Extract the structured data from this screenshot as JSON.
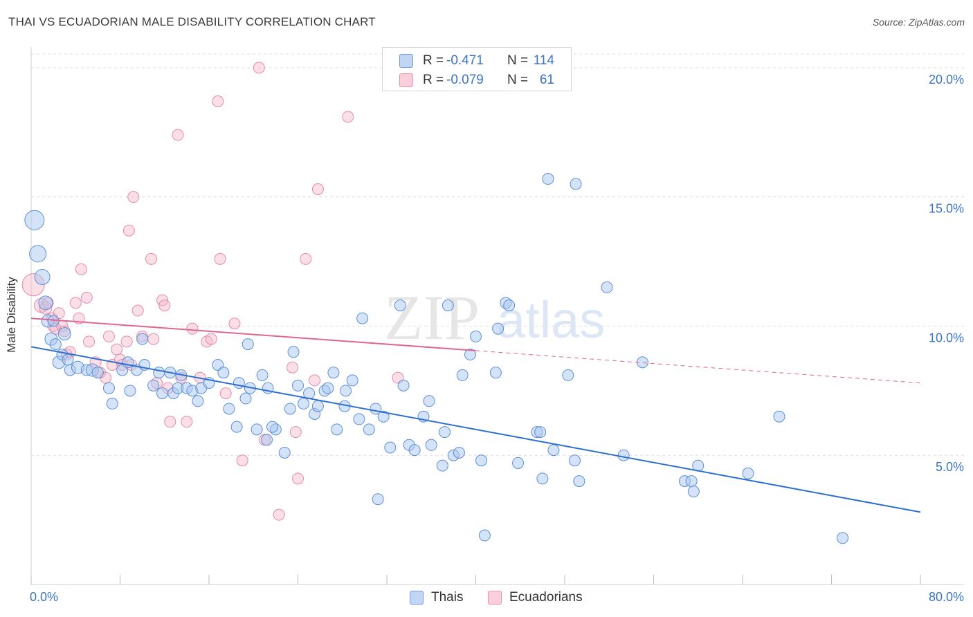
{
  "title": "THAI VS ECUADORIAN MALE DISABILITY CORRELATION CHART",
  "source": "Source: ZipAtlas.com",
  "watermark": {
    "zip": "ZIP",
    "atlas": "atlas"
  },
  "legend": {
    "rows": [
      {
        "r_label": "R =",
        "r_value": "-0.471",
        "n_label": "N =",
        "n_value": "114",
        "color": "#a9c7f0"
      },
      {
        "r_label": "R =",
        "r_value": "-0.079",
        "n_label": "N =",
        "n_value": "61",
        "color": "#f5b8ca"
      }
    ]
  },
  "bottom_legend": [
    {
      "label": "Thais",
      "color": "#a9c7f0"
    },
    {
      "label": "Ecuadorians",
      "color": "#f5b8ca"
    }
  ],
  "colors": {
    "thai_fill": "#a9c7f0",
    "thai_stroke": "#5b8fd6",
    "thai_line": "#2d6fd1",
    "ecu_fill": "#f5b8ca",
    "ecu_stroke": "#e58aa8",
    "ecu_line": "#e0668f",
    "grid": "#dcdcdc",
    "tick_label": "#3b73c9"
  },
  "chart_data": {
    "type": "scatter",
    "title": "THAI VS ECUADORIAN MALE DISABILITY CORRELATION CHART",
    "xlabel": "",
    "ylabel": "Male Disability",
    "xlim": [
      0,
      80
    ],
    "ylim": [
      0,
      20.8
    ],
    "x_tick_labels": [
      {
        "value": 0,
        "label": "0.0%"
      },
      {
        "value": 80,
        "label": "80.0%"
      }
    ],
    "y_tick_labels": [
      {
        "value": 5,
        "label": "5.0%"
      },
      {
        "value": 10,
        "label": "10.0%"
      },
      {
        "value": 15,
        "label": "15.0%"
      },
      {
        "value": 20,
        "label": "20.0%"
      }
    ],
    "grid": true,
    "legend_position": "top-center",
    "series": [
      {
        "name": "Thais",
        "r": -0.471,
        "n": 114,
        "trend": {
          "x": [
            0,
            80
          ],
          "y": [
            9.2,
            2.8
          ],
          "dashed_from": null
        },
        "points": [
          [
            0.3,
            14.1,
            28
          ],
          [
            0.6,
            12.8,
            24
          ],
          [
            1.0,
            11.9,
            22
          ],
          [
            1.3,
            10.9,
            20
          ],
          [
            1.5,
            10.2,
            18
          ],
          [
            1.8,
            9.5,
            18
          ],
          [
            2.0,
            10.2,
            16
          ],
          [
            2.2,
            9.3,
            16
          ],
          [
            2.5,
            8.6,
            18
          ],
          [
            2.8,
            8.9,
            16
          ],
          [
            3.0,
            9.7,
            18
          ],
          [
            3.3,
            8.7,
            16
          ],
          [
            3.5,
            8.3,
            16
          ],
          [
            4.2,
            8.4,
            18
          ],
          [
            5.0,
            8.3,
            16
          ],
          [
            5.5,
            8.3,
            18
          ],
          [
            6.0,
            8.2,
            16
          ],
          [
            7.0,
            7.6,
            16
          ],
          [
            7.3,
            7.0,
            16
          ],
          [
            8.2,
            8.3,
            16
          ],
          [
            8.7,
            8.6,
            16
          ],
          [
            8.9,
            7.5,
            16
          ],
          [
            9.5,
            8.3,
            16
          ],
          [
            10.0,
            9.5,
            16
          ],
          [
            10.2,
            8.5,
            16
          ],
          [
            11.0,
            7.7,
            16
          ],
          [
            11.5,
            8.2,
            16
          ],
          [
            11.8,
            7.4,
            16
          ],
          [
            12.5,
            8.2,
            16
          ],
          [
            12.8,
            7.4,
            16
          ],
          [
            13.2,
            7.6,
            16
          ],
          [
            13.5,
            8.1,
            16
          ],
          [
            14.0,
            7.6,
            16
          ],
          [
            14.5,
            7.5,
            16
          ],
          [
            15.0,
            7.1,
            16
          ],
          [
            15.3,
            7.6,
            16
          ],
          [
            16.0,
            7.8,
            16
          ],
          [
            16.8,
            8.5,
            16
          ],
          [
            17.3,
            8.2,
            16
          ],
          [
            17.8,
            6.8,
            16
          ],
          [
            18.5,
            6.1,
            16
          ],
          [
            18.7,
            7.8,
            16
          ],
          [
            19.3,
            7.2,
            16
          ],
          [
            19.5,
            9.3,
            16
          ],
          [
            19.7,
            7.6,
            16
          ],
          [
            20.3,
            6.0,
            16
          ],
          [
            20.8,
            8.1,
            16
          ],
          [
            21.2,
            5.6,
            16
          ],
          [
            21.3,
            7.6,
            16
          ],
          [
            22.0,
            6.0,
            16
          ],
          [
            22.8,
            5.1,
            16
          ],
          [
            23.3,
            6.8,
            16
          ],
          [
            23.6,
            9.0,
            16
          ],
          [
            24.0,
            7.7,
            16
          ],
          [
            24.5,
            7.0,
            16
          ],
          [
            25.0,
            7.4,
            16
          ],
          [
            25.5,
            6.6,
            16
          ],
          [
            25.8,
            6.9,
            16
          ],
          [
            26.4,
            7.5,
            16
          ],
          [
            26.7,
            7.6,
            16
          ],
          [
            27.2,
            8.2,
            16
          ],
          [
            27.5,
            6.0,
            16
          ],
          [
            28.2,
            6.9,
            16
          ],
          [
            28.3,
            7.5,
            16
          ],
          [
            28.9,
            7.9,
            16
          ],
          [
            29.5,
            6.4,
            16
          ],
          [
            29.8,
            10.3,
            16
          ],
          [
            30.4,
            6.0,
            16
          ],
          [
            31.0,
            6.8,
            16
          ],
          [
            31.2,
            3.3,
            16
          ],
          [
            31.7,
            6.5,
            16
          ],
          [
            32.3,
            5.3,
            16
          ],
          [
            33.2,
            10.8,
            16
          ],
          [
            33.5,
            7.7,
            16
          ],
          [
            34.0,
            5.4,
            16
          ],
          [
            34.5,
            5.2,
            16
          ],
          [
            35.3,
            6.5,
            16
          ],
          [
            35.8,
            7.1,
            16
          ],
          [
            36.0,
            5.4,
            16
          ],
          [
            37.0,
            4.6,
            16
          ],
          [
            37.2,
            5.9,
            16
          ],
          [
            38.0,
            5.0,
            16
          ],
          [
            38.5,
            5.1,
            16
          ],
          [
            38.8,
            8.1,
            16
          ],
          [
            39.5,
            8.9,
            16
          ],
          [
            40.0,
            9.6,
            16
          ],
          [
            40.5,
            4.8,
            16
          ],
          [
            40.8,
            1.9,
            16
          ],
          [
            41.8,
            8.2,
            16
          ],
          [
            42.0,
            9.9,
            16
          ],
          [
            42.7,
            10.9,
            16
          ],
          [
            43.0,
            10.8,
            16
          ],
          [
            43.8,
            4.7,
            16
          ],
          [
            45.5,
            5.9,
            16
          ],
          [
            45.8,
            5.9,
            16
          ],
          [
            46.0,
            4.1,
            16
          ],
          [
            46.5,
            15.7,
            16
          ],
          [
            47.0,
            5.2,
            16
          ],
          [
            48.3,
            8.1,
            16
          ],
          [
            48.9,
            4.8,
            16
          ],
          [
            49.0,
            15.5,
            16
          ],
          [
            49.3,
            4.0,
            16
          ],
          [
            51.8,
            11.5,
            16
          ],
          [
            53.3,
            5.0,
            16
          ],
          [
            55.0,
            8.6,
            16
          ],
          [
            58.8,
            4.0,
            16
          ],
          [
            59.4,
            4.0,
            16
          ],
          [
            59.6,
            3.6,
            16
          ],
          [
            60.0,
            4.6,
            16
          ],
          [
            64.5,
            4.3,
            16
          ],
          [
            67.3,
            6.5,
            16
          ],
          [
            73.0,
            1.8,
            16
          ],
          [
            21.7,
            6.1,
            16
          ],
          [
            37.5,
            10.8,
            16
          ]
        ]
      },
      {
        "name": "Ecuadorians",
        "r": -0.079,
        "n": 61,
        "trend": {
          "x": [
            0,
            80
          ],
          "y": [
            10.3,
            7.8
          ],
          "dashed_from": 40
        },
        "points": [
          [
            0.2,
            11.6,
            32
          ],
          [
            0.9,
            10.8,
            20
          ],
          [
            1.3,
            10.7,
            18
          ],
          [
            1.5,
            10.9,
            16
          ],
          [
            1.9,
            10.3,
            16
          ],
          [
            2.0,
            10.0,
            16
          ],
          [
            2.2,
            9.9,
            16
          ],
          [
            2.5,
            10.5,
            16
          ],
          [
            2.8,
            10.0,
            16
          ],
          [
            3.0,
            9.8,
            16
          ],
          [
            3.2,
            8.9,
            16
          ],
          [
            3.5,
            9.0,
            16
          ],
          [
            4.0,
            10.9,
            16
          ],
          [
            4.3,
            10.3,
            16
          ],
          [
            4.5,
            12.2,
            16
          ],
          [
            5.0,
            11.1,
            16
          ],
          [
            5.2,
            9.4,
            16
          ],
          [
            5.8,
            8.6,
            16
          ],
          [
            6.2,
            8.2,
            16
          ],
          [
            6.7,
            8.0,
            16
          ],
          [
            7.0,
            9.6,
            16
          ],
          [
            7.3,
            8.5,
            16
          ],
          [
            7.7,
            9.1,
            16
          ],
          [
            8.0,
            8.7,
            16
          ],
          [
            8.2,
            8.5,
            16
          ],
          [
            8.6,
            9.4,
            16
          ],
          [
            8.8,
            13.7,
            16
          ],
          [
            9.0,
            8.5,
            16
          ],
          [
            9.2,
            15.0,
            16
          ],
          [
            9.6,
            10.6,
            16
          ],
          [
            10.0,
            9.6,
            16
          ],
          [
            10.8,
            12.6,
            16
          ],
          [
            11.0,
            9.5,
            16
          ],
          [
            11.3,
            7.8,
            16
          ],
          [
            11.8,
            11.0,
            16
          ],
          [
            12.0,
            10.8,
            16
          ],
          [
            12.3,
            7.6,
            16
          ],
          [
            12.5,
            6.3,
            16
          ],
          [
            13.2,
            17.4,
            16
          ],
          [
            13.5,
            8.0,
            16
          ],
          [
            14.0,
            6.3,
            16
          ],
          [
            14.5,
            9.9,
            16
          ],
          [
            15.2,
            8.0,
            16
          ],
          [
            15.8,
            9.4,
            16
          ],
          [
            16.2,
            9.5,
            16
          ],
          [
            16.8,
            18.7,
            16
          ],
          [
            17.0,
            12.6,
            16
          ],
          [
            17.5,
            7.4,
            16
          ],
          [
            18.3,
            10.1,
            16
          ],
          [
            19.0,
            4.8,
            16
          ],
          [
            20.5,
            20.0,
            16
          ],
          [
            21.0,
            5.6,
            16
          ],
          [
            22.3,
            2.7,
            16
          ],
          [
            23.5,
            8.4,
            16
          ],
          [
            23.8,
            5.9,
            16
          ],
          [
            24.0,
            4.1,
            16
          ],
          [
            24.7,
            12.6,
            16
          ],
          [
            25.5,
            7.9,
            16
          ],
          [
            25.8,
            15.3,
            16
          ],
          [
            28.5,
            18.1,
            16
          ],
          [
            33.0,
            8.0,
            16
          ]
        ]
      }
    ]
  }
}
